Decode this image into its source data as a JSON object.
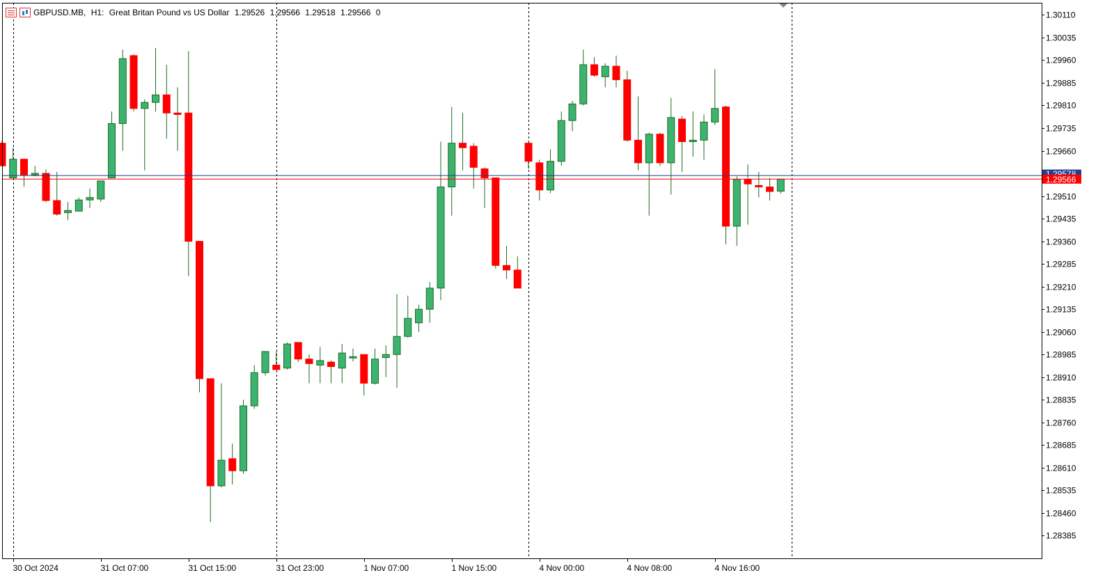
{
  "header": {
    "symbol": "GBPUSD.MB,",
    "timeframe": "H1:",
    "description": "Great Britan Pound vs US Dollar",
    "open": "1.29526",
    "high": "1.29566",
    "low": "1.29518",
    "close": "1.29566",
    "volume": "0",
    "icons": [
      "list-icon",
      "chart-icon"
    ]
  },
  "chart_data": {
    "type": "candlestick",
    "timeframe": "H1",
    "ylim": [
      1.2831,
      1.3015
    ],
    "y_ticks": [
      "1.30110",
      "1.30035",
      "1.29960",
      "1.29885",
      "1.29810",
      "1.29735",
      "1.29660",
      "1.29585",
      "1.29510",
      "1.29435",
      "1.29360",
      "1.29285",
      "1.29210",
      "1.29135",
      "1.29060",
      "1.28985",
      "1.28910",
      "1.28835",
      "1.28760",
      "1.28685",
      "1.28610",
      "1.28535",
      "1.28460",
      "1.28385"
    ],
    "x_ticks": [
      {
        "bar": 1,
        "label": "30 Oct 2024"
      },
      {
        "bar": 9,
        "label": "31 Oct 07:00"
      },
      {
        "bar": 17,
        "label": "31 Oct 15:00"
      },
      {
        "bar": 25,
        "label": "31 Oct 23:00"
      },
      {
        "bar": 33,
        "label": "1 Nov 07:00"
      },
      {
        "bar": 41,
        "label": "1 Nov 15:00"
      },
      {
        "bar": 49,
        "label": "4 Nov 00:00"
      },
      {
        "bar": 57,
        "label": "4 Nov 08:00"
      },
      {
        "bar": 65,
        "label": "4 Nov 16:00"
      }
    ],
    "day_separators": [
      1,
      25,
      48,
      72
    ],
    "bid_line": 1.29566,
    "ask_line": 1.29578,
    "bid_label": "1.29566",
    "ask_label": "1.29578",
    "colors": {
      "up": "#3cb371",
      "down": "#ff0000",
      "wick": "#1e6b1e",
      "bid": "#ff0000",
      "ask": "#1f3f8f",
      "grid": "#000000"
    },
    "candles": [
      {
        "o": 1.29685,
        "h": 1.29693,
        "l": 1.2961,
        "c": 1.2961
      },
      {
        "o": 1.2957,
        "h": 1.2967,
        "l": 1.2957,
        "c": 1.29632
      },
      {
        "o": 1.29632,
        "h": 1.29632,
        "l": 1.2954,
        "c": 1.2958
      },
      {
        "o": 1.2958,
        "h": 1.2961,
        "l": 1.29575,
        "c": 1.29585
      },
      {
        "o": 1.29585,
        "h": 1.29598,
        "l": 1.2949,
        "c": 1.29495
      },
      {
        "o": 1.29495,
        "h": 1.2959,
        "l": 1.29445,
        "c": 1.2945
      },
      {
        "o": 1.29455,
        "h": 1.2949,
        "l": 1.2943,
        "c": 1.29462
      },
      {
        "o": 1.2946,
        "h": 1.29505,
        "l": 1.2946,
        "c": 1.29497
      },
      {
        "o": 1.29497,
        "h": 1.29535,
        "l": 1.2947,
        "c": 1.29505
      },
      {
        "o": 1.295,
        "h": 1.29555,
        "l": 1.2949,
        "c": 1.2956
      },
      {
        "o": 1.2957,
        "h": 1.2979,
        "l": 1.2957,
        "c": 1.2975
      },
      {
        "o": 1.2975,
        "h": 1.29995,
        "l": 1.2966,
        "c": 1.29965
      },
      {
        "o": 1.29975,
        "h": 1.2998,
        "l": 1.2979,
        "c": 1.298
      },
      {
        "o": 1.298,
        "h": 1.2983,
        "l": 1.29595,
        "c": 1.2982
      },
      {
        "o": 1.2982,
        "h": 1.3,
        "l": 1.2979,
        "c": 1.29845
      },
      {
        "o": 1.29845,
        "h": 1.29945,
        "l": 1.297,
        "c": 1.29785
      },
      {
        "o": 1.29785,
        "h": 1.2987,
        "l": 1.2966,
        "c": 1.2978
      },
      {
        "o": 1.29785,
        "h": 1.2999,
        "l": 1.29245,
        "c": 1.2936
      },
      {
        "o": 1.2936,
        "h": 1.2936,
        "l": 1.2886,
        "c": 1.28905
      },
      {
        "o": 1.28905,
        "h": 1.28905,
        "l": 1.2843,
        "c": 1.2855
      },
      {
        "o": 1.2855,
        "h": 1.2889,
        "l": 1.28545,
        "c": 1.28635
      },
      {
        "o": 1.2864,
        "h": 1.2869,
        "l": 1.28555,
        "c": 1.286
      },
      {
        "o": 1.286,
        "h": 1.28835,
        "l": 1.2859,
        "c": 1.28815
      },
      {
        "o": 1.28815,
        "h": 1.2895,
        "l": 1.28805,
        "c": 1.28925
      },
      {
        "o": 1.28925,
        "h": 1.28995,
        "l": 1.28915,
        "c": 1.28995
      },
      {
        "o": 1.2895,
        "h": 1.28995,
        "l": 1.28935,
        "c": 1.28935
      },
      {
        "o": 1.2894,
        "h": 1.29025,
        "l": 1.28935,
        "c": 1.2902
      },
      {
        "o": 1.29025,
        "h": 1.29025,
        "l": 1.2896,
        "c": 1.2897
      },
      {
        "o": 1.2897,
        "h": 1.28985,
        "l": 1.2889,
        "c": 1.28955
      },
      {
        "o": 1.2895,
        "h": 1.2901,
        "l": 1.2889,
        "c": 1.28965
      },
      {
        "o": 1.2896,
        "h": 1.28965,
        "l": 1.2889,
        "c": 1.28945
      },
      {
        "o": 1.2894,
        "h": 1.2902,
        "l": 1.2889,
        "c": 1.2899
      },
      {
        "o": 1.28978,
        "h": 1.29005,
        "l": 1.28962,
        "c": 1.28978
      },
      {
        "o": 1.28985,
        "h": 1.28985,
        "l": 1.2885,
        "c": 1.2889
      },
      {
        "o": 1.2889,
        "h": 1.29005,
        "l": 1.28885,
        "c": 1.2897
      },
      {
        "o": 1.28975,
        "h": 1.29015,
        "l": 1.2891,
        "c": 1.28985
      },
      {
        "o": 1.28985,
        "h": 1.29185,
        "l": 1.28875,
        "c": 1.29045
      },
      {
        "o": 1.29045,
        "h": 1.2918,
        "l": 1.2904,
        "c": 1.29105
      },
      {
        "o": 1.2909,
        "h": 1.2915,
        "l": 1.2906,
        "c": 1.29135
      },
      {
        "o": 1.29135,
        "h": 1.29225,
        "l": 1.2909,
        "c": 1.29205
      },
      {
        "o": 1.29205,
        "h": 1.2969,
        "l": 1.29165,
        "c": 1.2954
      },
      {
        "o": 1.2954,
        "h": 1.29805,
        "l": 1.29445,
        "c": 1.29685
      },
      {
        "o": 1.29685,
        "h": 1.29785,
        "l": 1.29595,
        "c": 1.2967
      },
      {
        "o": 1.29675,
        "h": 1.29685,
        "l": 1.29535,
        "c": 1.29605
      },
      {
        "o": 1.296,
        "h": 1.29605,
        "l": 1.2947,
        "c": 1.2957
      },
      {
        "o": 1.2957,
        "h": 1.2957,
        "l": 1.2927,
        "c": 1.2928
      },
      {
        "o": 1.2928,
        "h": 1.29345,
        "l": 1.29235,
        "c": 1.29265
      },
      {
        "o": 1.29265,
        "h": 1.2931,
        "l": 1.29205,
        "c": 1.29205
      },
      {
        "o": 1.29685,
        "h": 1.2969,
        "l": 1.296,
        "c": 1.29625
      },
      {
        "o": 1.2962,
        "h": 1.2963,
        "l": 1.29495,
        "c": 1.2953
      },
      {
        "o": 1.2953,
        "h": 1.29665,
        "l": 1.2952,
        "c": 1.29625
      },
      {
        "o": 1.29625,
        "h": 1.2979,
        "l": 1.2961,
        "c": 1.2976
      },
      {
        "o": 1.2976,
        "h": 1.29825,
        "l": 1.29725,
        "c": 1.29815
      },
      {
        "o": 1.29815,
        "h": 1.29995,
        "l": 1.2981,
        "c": 1.29945
      },
      {
        "o": 1.29945,
        "h": 1.2997,
        "l": 1.29905,
        "c": 1.2991
      },
      {
        "o": 1.29905,
        "h": 1.2995,
        "l": 1.2987,
        "c": 1.2994
      },
      {
        "o": 1.2994,
        "h": 1.29975,
        "l": 1.2987,
        "c": 1.29895
      },
      {
        "o": 1.29895,
        "h": 1.29925,
        "l": 1.2969,
        "c": 1.29695
      },
      {
        "o": 1.29695,
        "h": 1.2984,
        "l": 1.29595,
        "c": 1.2962
      },
      {
        "o": 1.2962,
        "h": 1.2972,
        "l": 1.29445,
        "c": 1.29715
      },
      {
        "o": 1.29715,
        "h": 1.2972,
        "l": 1.2961,
        "c": 1.2962
      },
      {
        "o": 1.2962,
        "h": 1.29835,
        "l": 1.29515,
        "c": 1.2977
      },
      {
        "o": 1.29765,
        "h": 1.29775,
        "l": 1.2959,
        "c": 1.2969
      },
      {
        "o": 1.2969,
        "h": 1.2979,
        "l": 1.2964,
        "c": 1.29695
      },
      {
        "o": 1.29695,
        "h": 1.2978,
        "l": 1.2963,
        "c": 1.29755
      },
      {
        "o": 1.29755,
        "h": 1.2993,
        "l": 1.29745,
        "c": 1.298
      },
      {
        "o": 1.29805,
        "h": 1.2981,
        "l": 1.2935,
        "c": 1.2941
      },
      {
        "o": 1.2941,
        "h": 1.29575,
        "l": 1.29345,
        "c": 1.29565
      },
      {
        "o": 1.29565,
        "h": 1.29615,
        "l": 1.29415,
        "c": 1.2955
      },
      {
        "o": 1.29545,
        "h": 1.2959,
        "l": 1.29505,
        "c": 1.2954
      },
      {
        "o": 1.2954,
        "h": 1.2957,
        "l": 1.29495,
        "c": 1.29525
      },
      {
        "o": 1.29526,
        "h": 1.29566,
        "l": 1.29518,
        "c": 1.29566
      }
    ]
  }
}
